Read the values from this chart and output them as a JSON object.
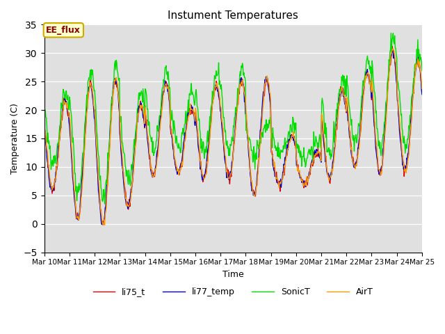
{
  "title": "Instument Temperatures",
  "xlabel": "Time",
  "ylabel": "Temperature (C)",
  "ylim": [
    -5,
    35
  ],
  "yticks": [
    -5,
    0,
    5,
    10,
    15,
    20,
    25,
    30,
    35
  ],
  "xlim": [
    0,
    15
  ],
  "xtick_labels": [
    "Mar 10",
    "Mar 11",
    "Mar 12",
    "Mar 13",
    "Mar 14",
    "Mar 15",
    "Mar 16",
    "Mar 17",
    "Mar 18",
    "Mar 19",
    "Mar 20",
    "Mar 21",
    "Mar 22",
    "Mar 23",
    "Mar 24",
    "Mar 25"
  ],
  "annotation_text": "EE_flux",
  "colors": {
    "li75_t": "#dd0000",
    "li77_temp": "#0000cc",
    "SonicT": "#00dd00",
    "AirT": "#ff9900"
  },
  "legend_labels": [
    "li75_t",
    "li77_temp",
    "SonicT",
    "AirT"
  ],
  "bg_color": "#e0e0e0",
  "grid_color": "#ffffff",
  "linewidth": 1.0,
  "figsize": [
    6.4,
    4.8
  ],
  "dpi": 100
}
